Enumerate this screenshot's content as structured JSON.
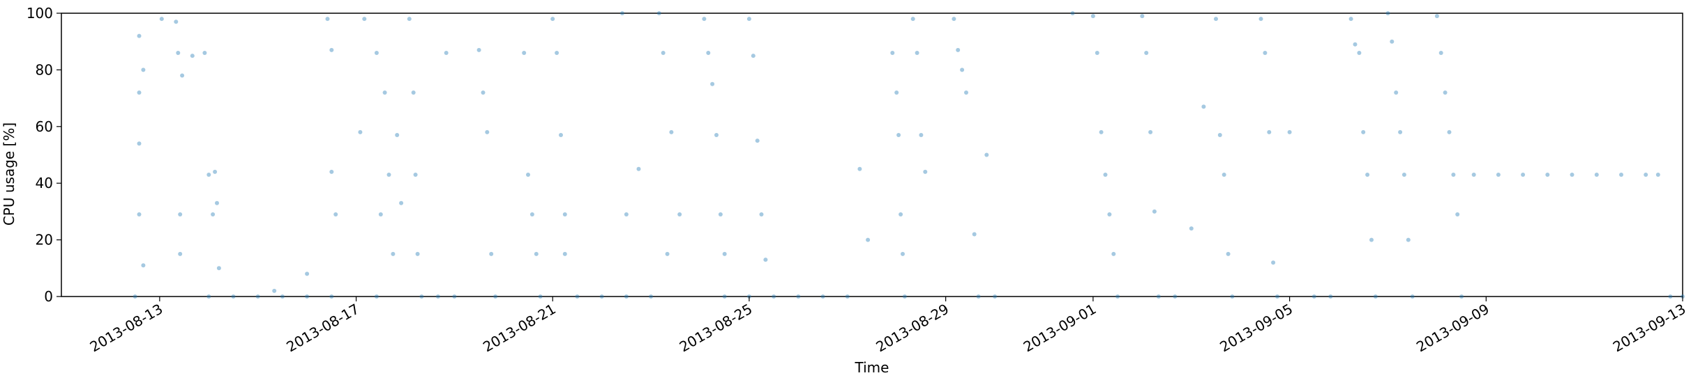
{
  "chart_data": {
    "type": "scatter",
    "xlabel": "Time",
    "ylabel": "CPU usage [%]",
    "ylim": [
      0,
      100
    ],
    "xlim": [
      "2013-08-11",
      "2013-09-13"
    ],
    "x_ticks": [
      "2013-08-13",
      "2013-08-17",
      "2013-08-21",
      "2013-08-25",
      "2013-08-29",
      "2013-09-01",
      "2013-09-05",
      "2013-09-09",
      "2013-09-13"
    ],
    "y_ticks": [
      0,
      20,
      40,
      60,
      80,
      100
    ],
    "grid": false,
    "marker_color": "#1f77b4",
    "marker_opacity": 0.4,
    "series": [
      {
        "values": [
          {
            "x": "2013-08-12 12:00",
            "y": 0
          },
          {
            "x": "2013-08-12 14:00",
            "y": 92
          },
          {
            "x": "2013-08-12 14:00",
            "y": 72
          },
          {
            "x": "2013-08-12 14:00",
            "y": 54
          },
          {
            "x": "2013-08-12 14:00",
            "y": 29
          },
          {
            "x": "2013-08-12 16:00",
            "y": 80
          },
          {
            "x": "2013-08-12 16:00",
            "y": 11
          },
          {
            "x": "2013-08-13 01:00",
            "y": 98
          },
          {
            "x": "2013-08-13 08:00",
            "y": 97
          },
          {
            "x": "2013-08-13 09:00",
            "y": 86
          },
          {
            "x": "2013-08-13 10:00",
            "y": 29
          },
          {
            "x": "2013-08-13 10:00",
            "y": 15
          },
          {
            "x": "2013-08-13 11:00",
            "y": 78
          },
          {
            "x": "2013-08-13 16:00",
            "y": 85
          },
          {
            "x": "2013-08-13 22:00",
            "y": 86
          },
          {
            "x": "2013-08-14 00:00",
            "y": 43
          },
          {
            "x": "2013-08-14 02:00",
            "y": 29
          },
          {
            "x": "2013-08-14 03:00",
            "y": 44
          },
          {
            "x": "2013-08-14 04:00",
            "y": 33
          },
          {
            "x": "2013-08-14 05:00",
            "y": 10
          },
          {
            "x": "2013-08-14 00:00",
            "y": 0
          },
          {
            "x": "2013-08-14 12:00",
            "y": 0
          },
          {
            "x": "2013-08-15 00:00",
            "y": 0
          },
          {
            "x": "2013-08-15 12:00",
            "y": 0
          },
          {
            "x": "2013-08-16 00:00",
            "y": 0
          },
          {
            "x": "2013-08-16 12:00",
            "y": 0
          },
          {
            "x": "2013-08-15 08:00",
            "y": 2
          },
          {
            "x": "2013-08-16 00:00",
            "y": 8
          },
          {
            "x": "2013-08-16 10:00",
            "y": 98
          },
          {
            "x": "2013-08-16 12:00",
            "y": 87
          },
          {
            "x": "2013-08-16 12:00",
            "y": 44
          },
          {
            "x": "2013-08-16 14:00",
            "y": 29
          },
          {
            "x": "2013-08-17 02:00",
            "y": 58
          },
          {
            "x": "2013-08-17 04:00",
            "y": 98
          },
          {
            "x": "2013-08-17 10:00",
            "y": 86
          },
          {
            "x": "2013-08-17 12:00",
            "y": 29
          },
          {
            "x": "2013-08-17 14:00",
            "y": 72
          },
          {
            "x": "2013-08-17 16:00",
            "y": 43
          },
          {
            "x": "2013-08-17 18:00",
            "y": 15
          },
          {
            "x": "2013-08-17 20:00",
            "y": 57
          },
          {
            "x": "2013-08-17 22:00",
            "y": 33
          },
          {
            "x": "2013-08-17 10:00",
            "y": 0
          },
          {
            "x": "2013-08-18 02:00",
            "y": 98
          },
          {
            "x": "2013-08-18 04:00",
            "y": 72
          },
          {
            "x": "2013-08-18 05:00",
            "y": 43
          },
          {
            "x": "2013-08-18 06:00",
            "y": 15
          },
          {
            "x": "2013-08-18 08:00",
            "y": 0
          },
          {
            "x": "2013-08-18 16:00",
            "y": 0
          },
          {
            "x": "2013-08-19 00:00",
            "y": 0
          },
          {
            "x": "2013-08-18 20:00",
            "y": 86
          },
          {
            "x": "2013-08-19 12:00",
            "y": 87
          },
          {
            "x": "2013-08-19 14:00",
            "y": 72
          },
          {
            "x": "2013-08-19 16:00",
            "y": 58
          },
          {
            "x": "2013-08-19 18:00",
            "y": 15
          },
          {
            "x": "2013-08-19 20:00",
            "y": 0
          },
          {
            "x": "2013-08-20 10:00",
            "y": 86
          },
          {
            "x": "2013-08-20 12:00",
            "y": 43
          },
          {
            "x": "2013-08-20 14:00",
            "y": 29
          },
          {
            "x": "2013-08-20 16:00",
            "y": 15
          },
          {
            "x": "2013-08-20 18:00",
            "y": 0
          },
          {
            "x": "2013-08-21 00:00",
            "y": 98
          },
          {
            "x": "2013-08-21 02:00",
            "y": 86
          },
          {
            "x": "2013-08-21 04:00",
            "y": 57
          },
          {
            "x": "2013-08-21 06:00",
            "y": 29
          },
          {
            "x": "2013-08-21 06:00",
            "y": 15
          },
          {
            "x": "2013-08-21 12:00",
            "y": 0
          },
          {
            "x": "2013-08-22 00:00",
            "y": 0
          },
          {
            "x": "2013-08-22 12:00",
            "y": 0
          },
          {
            "x": "2013-08-23 00:00",
            "y": 0
          },
          {
            "x": "2013-08-22 10:00",
            "y": 100
          },
          {
            "x": "2013-08-22 12:00",
            "y": 29
          },
          {
            "x": "2013-08-22 18:00",
            "y": 45
          },
          {
            "x": "2013-08-23 04:00",
            "y": 100
          },
          {
            "x": "2013-08-23 06:00",
            "y": 86
          },
          {
            "x": "2013-08-23 08:00",
            "y": 15
          },
          {
            "x": "2013-08-23 10:00",
            "y": 58
          },
          {
            "x": "2013-08-23 14:00",
            "y": 29
          },
          {
            "x": "2013-08-24 02:00",
            "y": 98
          },
          {
            "x": "2013-08-24 04:00",
            "y": 86
          },
          {
            "x": "2013-08-24 06:00",
            "y": 75
          },
          {
            "x": "2013-08-24 08:00",
            "y": 57
          },
          {
            "x": "2013-08-24 10:00",
            "y": 29
          },
          {
            "x": "2013-08-24 12:00",
            "y": 15
          },
          {
            "x": "2013-08-25 00:00",
            "y": 98
          },
          {
            "x": "2013-08-25 02:00",
            "y": 85
          },
          {
            "x": "2013-08-25 04:00",
            "y": 55
          },
          {
            "x": "2013-08-25 06:00",
            "y": 29
          },
          {
            "x": "2013-08-25 08:00",
            "y": 13
          },
          {
            "x": "2013-08-24 12:00",
            "y": 0
          },
          {
            "x": "2013-08-25 00:00",
            "y": 0
          },
          {
            "x": "2013-08-25 12:00",
            "y": 0
          },
          {
            "x": "2013-08-26 00:00",
            "y": 0
          },
          {
            "x": "2013-08-26 12:00",
            "y": 0
          },
          {
            "x": "2013-08-27 00:00",
            "y": 0
          },
          {
            "x": "2013-08-27 06:00",
            "y": 45
          },
          {
            "x": "2013-08-27 10:00",
            "y": 20
          },
          {
            "x": "2013-08-27 22:00",
            "y": 86
          },
          {
            "x": "2013-08-28 00:00",
            "y": 72
          },
          {
            "x": "2013-08-28 01:00",
            "y": 57
          },
          {
            "x": "2013-08-28 02:00",
            "y": 29
          },
          {
            "x": "2013-08-28 03:00",
            "y": 15
          },
          {
            "x": "2013-08-28 04:00",
            "y": 0
          },
          {
            "x": "2013-08-28 08:00",
            "y": 98
          },
          {
            "x": "2013-08-28 10:00",
            "y": 86
          },
          {
            "x": "2013-08-28 12:00",
            "y": 57
          },
          {
            "x": "2013-08-28 14:00",
            "y": 44
          },
          {
            "x": "2013-08-29 04:00",
            "y": 98
          },
          {
            "x": "2013-08-29 06:00",
            "y": 87
          },
          {
            "x": "2013-08-29 08:00",
            "y": 80
          },
          {
            "x": "2013-08-29 10:00",
            "y": 72
          },
          {
            "x": "2013-08-29 14:00",
            "y": 22
          },
          {
            "x": "2013-08-29 16:00",
            "y": 0
          },
          {
            "x": "2013-08-30 00:00",
            "y": 0
          },
          {
            "x": "2013-08-29 20:00",
            "y": 50
          },
          {
            "x": "2013-08-31 14:00",
            "y": 100
          },
          {
            "x": "2013-09-01 00:00",
            "y": 99
          },
          {
            "x": "2013-09-01 02:00",
            "y": 86
          },
          {
            "x": "2013-09-01 04:00",
            "y": 58
          },
          {
            "x": "2013-09-01 06:00",
            "y": 43
          },
          {
            "x": "2013-09-01 08:00",
            "y": 29
          },
          {
            "x": "2013-09-01 10:00",
            "y": 15
          },
          {
            "x": "2013-09-01 12:00",
            "y": 0
          },
          {
            "x": "2013-09-02 00:00",
            "y": 99
          },
          {
            "x": "2013-09-02 02:00",
            "y": 86
          },
          {
            "x": "2013-09-02 04:00",
            "y": 58
          },
          {
            "x": "2013-09-02 06:00",
            "y": 30
          },
          {
            "x": "2013-09-02 08:00",
            "y": 0
          },
          {
            "x": "2013-09-02 16:00",
            "y": 0
          },
          {
            "x": "2013-09-03 00:00",
            "y": 24
          },
          {
            "x": "2013-09-03 06:00",
            "y": 67
          },
          {
            "x": "2013-09-03 12:00",
            "y": 98
          },
          {
            "x": "2013-09-03 14:00",
            "y": 57
          },
          {
            "x": "2013-09-03 16:00",
            "y": 43
          },
          {
            "x": "2013-09-03 18:00",
            "y": 15
          },
          {
            "x": "2013-09-03 20:00",
            "y": 0
          },
          {
            "x": "2013-09-04 10:00",
            "y": 98
          },
          {
            "x": "2013-09-04 12:00",
            "y": 86
          },
          {
            "x": "2013-09-04 14:00",
            "y": 58
          },
          {
            "x": "2013-09-04 16:00",
            "y": 12
          },
          {
            "x": "2013-09-04 18:00",
            "y": 0
          },
          {
            "x": "2013-09-05 00:00",
            "y": 58
          },
          {
            "x": "2013-09-05 12:00",
            "y": 0
          },
          {
            "x": "2013-09-05 20:00",
            "y": 0
          },
          {
            "x": "2013-09-06 06:00",
            "y": 98
          },
          {
            "x": "2013-09-06 08:00",
            "y": 89
          },
          {
            "x": "2013-09-06 10:00",
            "y": 86
          },
          {
            "x": "2013-09-06 12:00",
            "y": 58
          },
          {
            "x": "2013-09-06 14:00",
            "y": 43
          },
          {
            "x": "2013-09-06 16:00",
            "y": 20
          },
          {
            "x": "2013-09-06 18:00",
            "y": 0
          },
          {
            "x": "2013-09-07 00:00",
            "y": 100
          },
          {
            "x": "2013-09-07 02:00",
            "y": 90
          },
          {
            "x": "2013-09-07 04:00",
            "y": 72
          },
          {
            "x": "2013-09-07 06:00",
            "y": 58
          },
          {
            "x": "2013-09-07 08:00",
            "y": 43
          },
          {
            "x": "2013-09-07 10:00",
            "y": 20
          },
          {
            "x": "2013-09-07 12:00",
            "y": 0
          },
          {
            "x": "2013-09-08 00:00",
            "y": 99
          },
          {
            "x": "2013-09-08 02:00",
            "y": 86
          },
          {
            "x": "2013-09-08 04:00",
            "y": 72
          },
          {
            "x": "2013-09-08 06:00",
            "y": 58
          },
          {
            "x": "2013-09-08 08:00",
            "y": 43
          },
          {
            "x": "2013-09-08 10:00",
            "y": 29
          },
          {
            "x": "2013-09-08 12:00",
            "y": 0
          },
          {
            "x": "2013-09-08 18:00",
            "y": 43
          },
          {
            "x": "2013-09-09 06:00",
            "y": 43
          },
          {
            "x": "2013-09-09 18:00",
            "y": 43
          },
          {
            "x": "2013-09-10 06:00",
            "y": 43
          },
          {
            "x": "2013-09-10 18:00",
            "y": 43
          },
          {
            "x": "2013-09-11 06:00",
            "y": 43
          },
          {
            "x": "2013-09-11 18:00",
            "y": 43
          },
          {
            "x": "2013-09-12 06:00",
            "y": 43
          },
          {
            "x": "2013-09-12 12:00",
            "y": 43
          },
          {
            "x": "2013-09-12 18:00",
            "y": 0
          },
          {
            "x": "2013-09-13 00:00",
            "y": 0
          }
        ]
      }
    ]
  }
}
